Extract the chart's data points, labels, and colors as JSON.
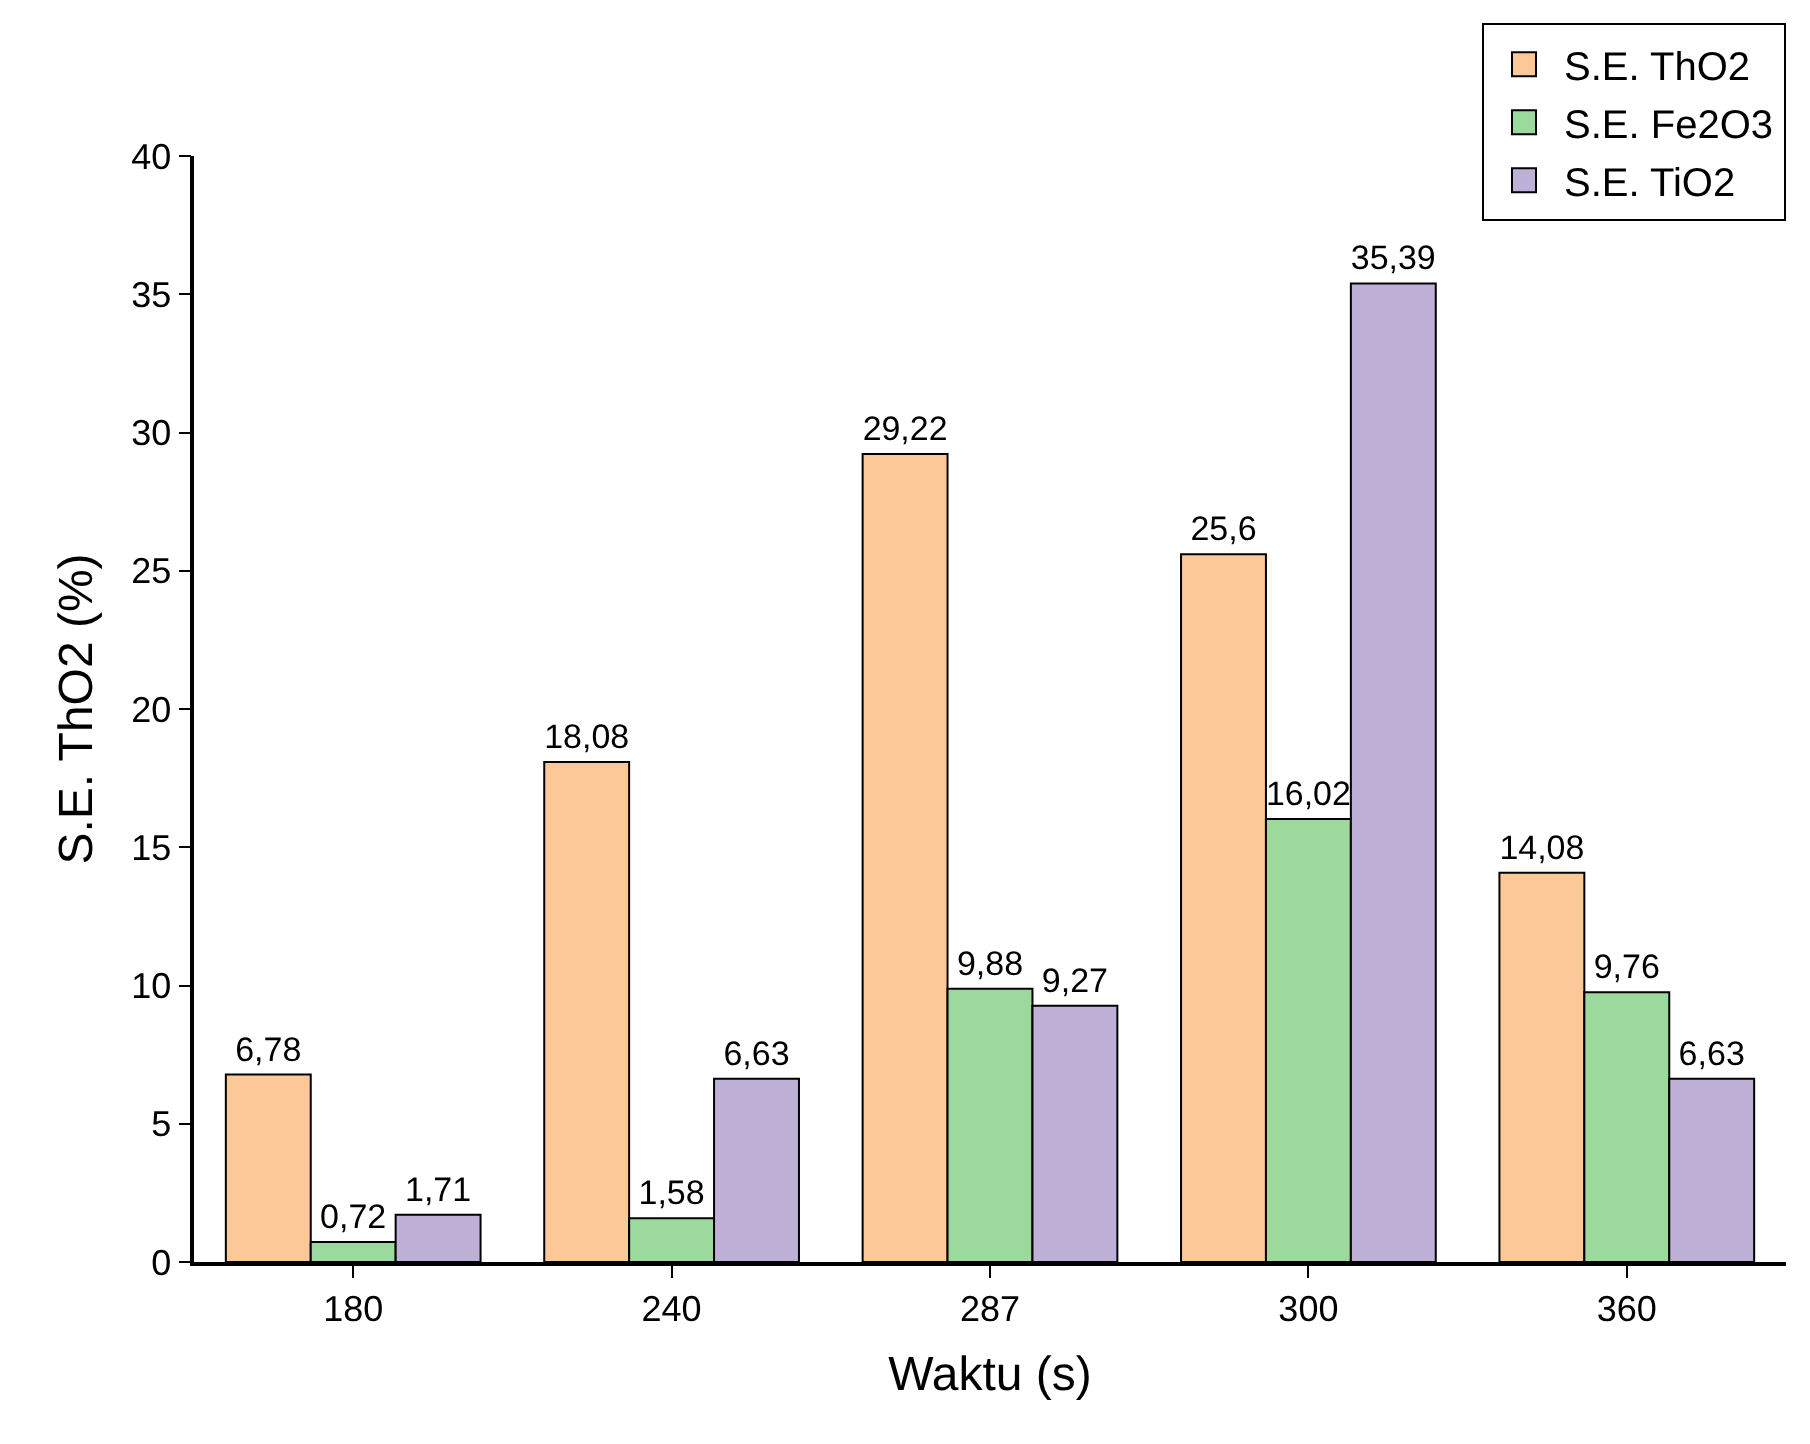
{
  "chart_data": {
    "type": "bar",
    "xlabel": "Waktu (s)",
    "ylabel": "S.E. ThO2 (%)",
    "categories": [
      "180",
      "240",
      "287",
      "300",
      "360"
    ],
    "series": [
      {
        "name": "S.E. ThO2",
        "color": "#fdc897",
        "values": [
          6.78,
          18.08,
          29.22,
          25.6,
          14.08
        ],
        "value_labels": [
          "6,78",
          "18,08",
          "29,22",
          "25,6",
          "14,08"
        ]
      },
      {
        "name": "S.E. Fe2O3",
        "color": "#9cd99c",
        "values": [
          0.72,
          1.58,
          9.88,
          16.02,
          9.76
        ],
        "value_labels": [
          "0,72",
          "1,58",
          "9,88",
          "16,02",
          "9,76"
        ]
      },
      {
        "name": "S.E. TiO2",
        "color": "#bfb0d8",
        "values": [
          1.71,
          6.63,
          9.27,
          35.39,
          6.63
        ],
        "value_labels": [
          "1,71",
          "6,63",
          "9,27",
          "35,39",
          "6,63"
        ]
      }
    ],
    "ylim": [
      0,
      40
    ],
    "yticks": [
      0,
      5,
      10,
      15,
      20,
      25,
      30,
      35,
      40
    ],
    "grid": false,
    "legend": "top right"
  }
}
